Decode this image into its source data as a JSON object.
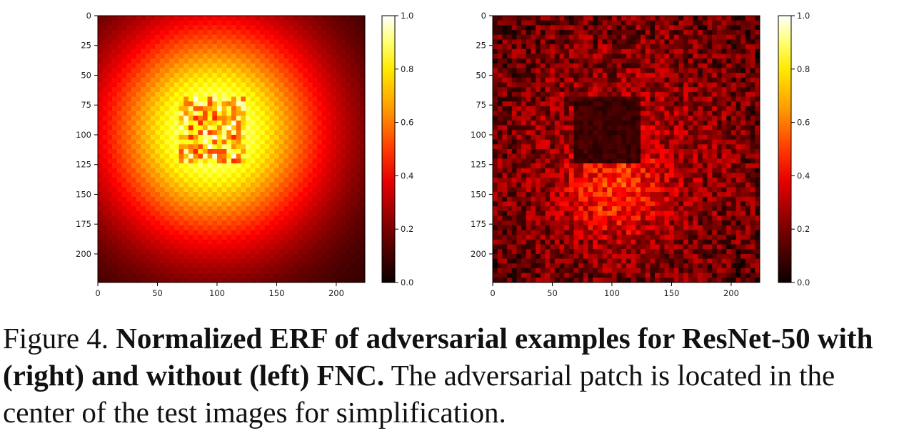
{
  "chart_data": [
    {
      "type": "heatmap",
      "panel": "left",
      "description_visible": "ERF without FNC",
      "x_ticks": [
        0,
        50,
        100,
        150,
        200
      ],
      "y_ticks": [
        0,
        25,
        50,
        75,
        100,
        125,
        150,
        175,
        200
      ],
      "xlim": [
        0,
        224
      ],
      "ylim": [
        0,
        224
      ],
      "patch_region": {
        "x": [
          68,
          125
        ],
        "y": [
          68,
          125
        ]
      },
      "colorbar": {
        "ticks": [
          "0.0",
          "0.2",
          "0.4",
          "0.6",
          "0.8",
          "1.0"
        ],
        "range": [
          0.0,
          1.0
        ],
        "colormap": "hot"
      },
      "pattern": "bright radial glow centered near (100,100), peak ~0.9 around patch, decaying to ~0.05 at corners"
    },
    {
      "type": "heatmap",
      "panel": "right",
      "description_visible": "ERF with FNC",
      "x_ticks": [
        0,
        50,
        100,
        150,
        200
      ],
      "y_ticks": [
        0,
        25,
        50,
        75,
        100,
        125,
        150,
        175,
        200
      ],
      "xlim": [
        0,
        224
      ],
      "ylim": [
        0,
        224
      ],
      "patch_region": {
        "x": [
          68,
          125
        ],
        "y": [
          68,
          125
        ]
      },
      "colorbar": {
        "ticks": [
          "0.0",
          "0.2",
          "0.4",
          "0.6",
          "0.8",
          "1.0"
        ],
        "range": [
          0.0,
          1.0
        ],
        "colormap": "hot"
      },
      "pattern": "noisy diffuse response ~0.2-0.5, dark suppressed square over patch, brighter lobe below patch"
    }
  ],
  "caption": {
    "prefix": "Figure 4. ",
    "bold": "Normalized ERF of adversarial examples for ResNet-50 with (right) and without (left) FNC.",
    "rest": " The adversarial patch is located in the center of the test images for simplification."
  }
}
